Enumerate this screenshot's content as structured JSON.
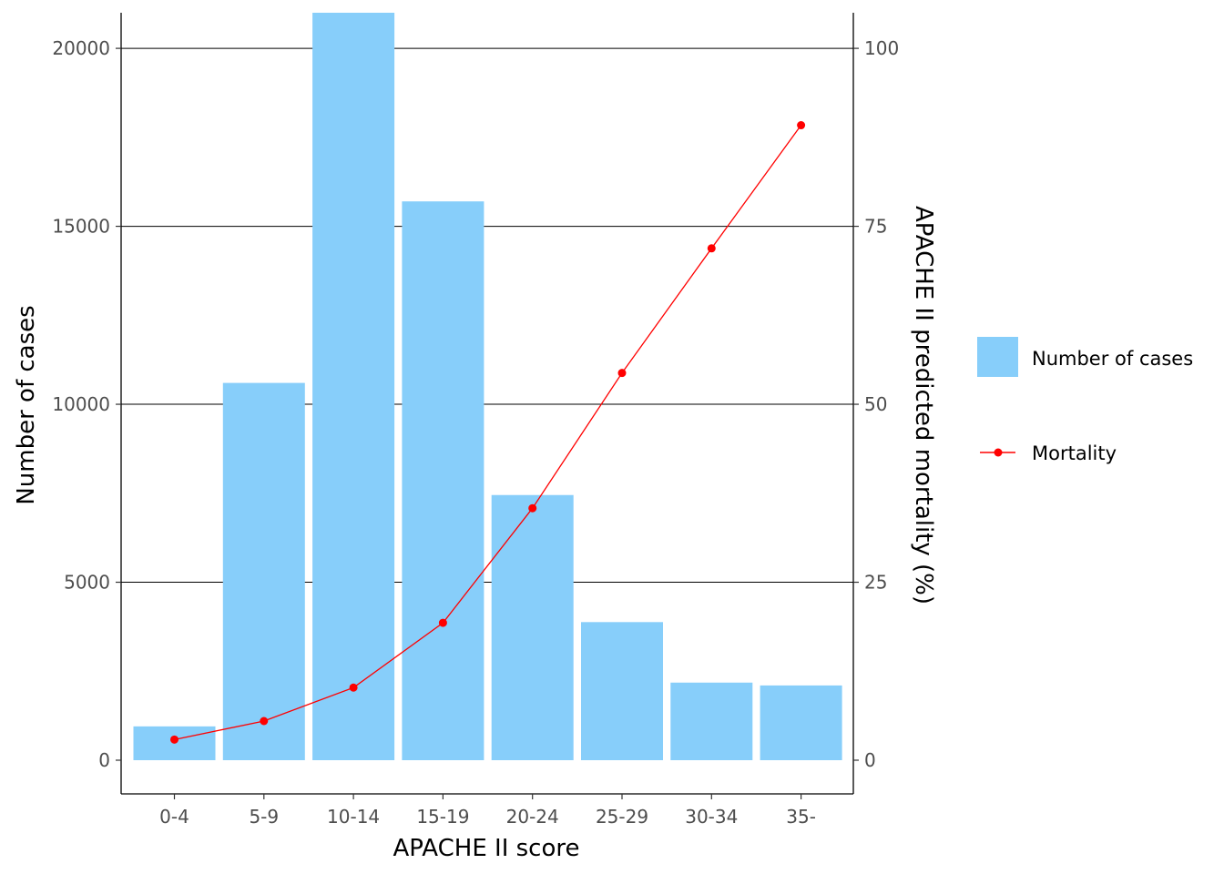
{
  "chart_data": {
    "type": "bar",
    "categories": [
      "0-4",
      "5-9",
      "10-14",
      "15-19",
      "20-24",
      "25-29",
      "30-34",
      "35-"
    ],
    "xlabel": "APACHE II score",
    "ylabel": "Number of cases",
    "y2label": "APACHE II predicted mortality (%)",
    "ylim": [
      0,
      21000
    ],
    "y2lim": [
      0,
      105
    ],
    "yticks": [
      0,
      5000,
      10000,
      15000,
      20000
    ],
    "y2ticks": [
      0,
      25,
      50,
      75,
      100
    ],
    "grid": "horizontal",
    "legend_position": "right",
    "series": [
      {
        "name": "Number of cases",
        "type": "bar",
        "axis": "left",
        "color": "#87CEFA",
        "values": [
          950,
          10600,
          21000,
          15700,
          7450,
          3880,
          2180,
          2100
        ]
      },
      {
        "name": "Mortality",
        "type": "line",
        "axis": "right",
        "color": "#FF0000",
        "values": [
          2.9,
          5.5,
          10.2,
          19.3,
          35.4,
          54.4,
          71.9,
          89.2
        ]
      }
    ]
  }
}
